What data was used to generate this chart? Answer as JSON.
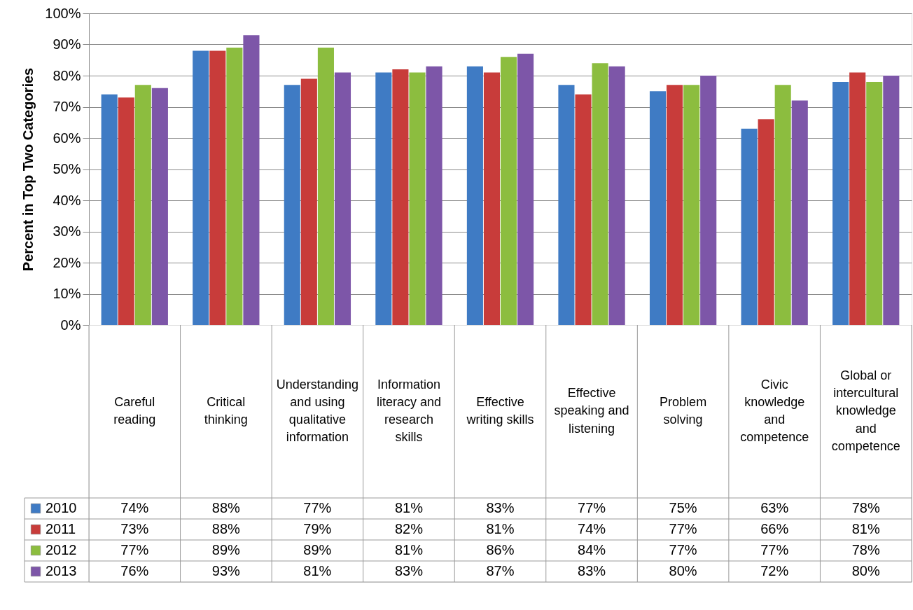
{
  "chart_data": {
    "type": "bar",
    "ylabel": "Percent in Top Two Categories",
    "categories": [
      "Careful reading",
      "Critical thinking",
      "Understanding and using qualitative information",
      "Information literacy and research skills",
      "Effective writing skills",
      "Effective speaking and listening",
      "Problem solving",
      "Civic knowledge and competence",
      "Global or intercultural knowledge and competence"
    ],
    "series": [
      {
        "name": "2010",
        "color": "#3f7bc4",
        "values": [
          74,
          88,
          77,
          81,
          83,
          77,
          75,
          63,
          78
        ],
        "value_labels": [
          "74%",
          "88%",
          "77%",
          "81%",
          "83%",
          "77%",
          "75%",
          "63%",
          "78%"
        ]
      },
      {
        "name": "2011",
        "color": "#c83c3a",
        "values": [
          73,
          88,
          79,
          82,
          81,
          74,
          77,
          66,
          81
        ],
        "value_labels": [
          "73%",
          "88%",
          "79%",
          "82%",
          "81%",
          "74%",
          "77%",
          "66%",
          "81%"
        ]
      },
      {
        "name": "2012",
        "color": "#8cbd3f",
        "values": [
          77,
          89,
          89,
          81,
          86,
          84,
          77,
          77,
          78
        ],
        "value_labels": [
          "77%",
          "89%",
          "89%",
          "81%",
          "86%",
          "84%",
          "77%",
          "77%",
          "78%"
        ]
      },
      {
        "name": "2013",
        "color": "#7d56a8",
        "values": [
          76,
          93,
          81,
          83,
          87,
          83,
          80,
          72,
          80
        ],
        "value_labels": [
          "76%",
          "93%",
          "81%",
          "83%",
          "87%",
          "83%",
          "80%",
          "72%",
          "80%"
        ]
      }
    ],
    "ylim": [
      0,
      100
    ],
    "yticks": [
      {
        "value": 0,
        "label": "0%"
      },
      {
        "value": 10,
        "label": "10%"
      },
      {
        "value": 20,
        "label": "20%"
      },
      {
        "value": 30,
        "label": "30%"
      },
      {
        "value": 40,
        "label": "40%"
      },
      {
        "value": 50,
        "label": "50%"
      },
      {
        "value": 60,
        "label": "60%"
      },
      {
        "value": 70,
        "label": "70%"
      },
      {
        "value": 80,
        "label": "80%"
      },
      {
        "value": 90,
        "label": "90%"
      },
      {
        "value": 100,
        "label": "100%"
      }
    ],
    "grid": "y",
    "legend": "bottom left"
  }
}
